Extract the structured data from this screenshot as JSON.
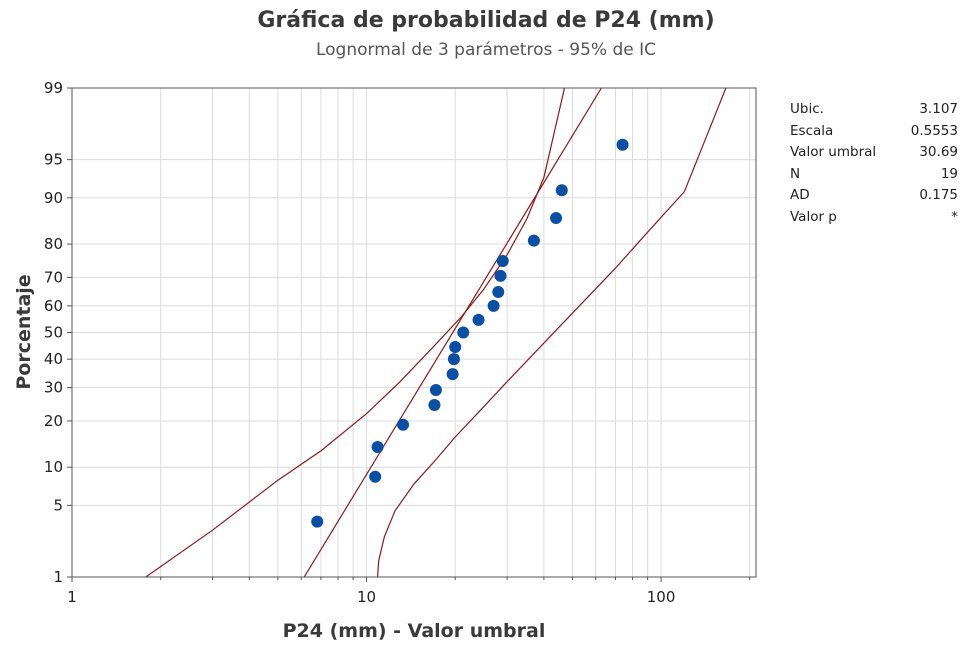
{
  "chart_data": {
    "type": "scatter",
    "title": "Gráfica de probabilidad de P24 (mm)",
    "subtitle": "Lognormal de 3 parámetros - 95% de IC",
    "xlabel": "P24 (mm) - Valor umbral",
    "ylabel": "Porcentaje",
    "x_scale": "log",
    "y_scale": "lognormal-probability",
    "xlim": [
      1,
      210
    ],
    "ylim": [
      1,
      99
    ],
    "x_ticks": [
      1,
      10,
      100
    ],
    "x_tick_labels": [
      "1",
      "10",
      "100"
    ],
    "y_ticks": [
      1,
      5,
      10,
      20,
      30,
      40,
      50,
      60,
      70,
      80,
      90,
      95,
      99
    ],
    "y_tick_labels": [
      "1",
      "5",
      "10",
      "20",
      "30",
      "40",
      "50",
      "60",
      "70",
      "80",
      "90",
      "95",
      "99"
    ],
    "grid": true,
    "points": [
      {
        "x": 6.8,
        "y": 3.6
      },
      {
        "x": 10.7,
        "y": 8.5
      },
      {
        "x": 10.9,
        "y": 13.8
      },
      {
        "x": 13.3,
        "y": 19.0
      },
      {
        "x": 17.0,
        "y": 24.5
      },
      {
        "x": 17.2,
        "y": 29.2
      },
      {
        "x": 19.6,
        "y": 34.6
      },
      {
        "x": 19.8,
        "y": 40.0
      },
      {
        "x": 20.0,
        "y": 44.5
      },
      {
        "x": 21.3,
        "y": 50.0
      },
      {
        "x": 24.0,
        "y": 54.8
      },
      {
        "x": 27.0,
        "y": 60.0
      },
      {
        "x": 28.0,
        "y": 65.0
      },
      {
        "x": 28.5,
        "y": 70.5
      },
      {
        "x": 29.0,
        "y": 75.2
      },
      {
        "x": 37.0,
        "y": 80.9
      },
      {
        "x": 44.0,
        "y": 86.2
      },
      {
        "x": 46.0,
        "y": 91.2
      },
      {
        "x": 74.0,
        "y": 96.3
      }
    ],
    "fit_line": {
      "x": [
        6.14,
        62.7
      ],
      "y": [
        1,
        99
      ]
    },
    "ci_lower": {
      "x": [
        1.78,
        3.0,
        5.0,
        8.0,
        10.5,
        13.0,
        17.0,
        21.0,
        27.0,
        35.0,
        45.0,
        60.0,
        80.0,
        120.0,
        180.0
      ],
      "y": [
        1.0,
        1.7,
        3.0,
        6.0,
        10.0,
        15.0,
        23.0,
        32.0,
        45.0,
        58.0,
        70.0,
        82.0,
        90.0,
        96.0,
        98.5
      ]
    },
    "ci_upper": {
      "x": [
        10.9,
        11.0,
        11.5,
        12.5,
        14.5,
        17.0,
        20.0,
        25.0,
        30.0,
        40.0,
        55.0,
        70.0,
        90.0,
        120.0,
        166.0
      ],
      "y": [
        1.0,
        1.5,
        2.6,
        4.5,
        7.5,
        11.0,
        16.0,
        24.0,
        32.0,
        46.0,
        62.0,
        73.0,
        83.0,
        91.0,
        99.0
      ]
    },
    "ci_upper_left": {
      "x": [
        1.78,
        3.0,
        5.0,
        7.0,
        10.0,
        13.0,
        17.0,
        21.0,
        25.0,
        30.0,
        35.0,
        40.0,
        47.0
      ],
      "y": [
        1.0,
        3.0,
        8.0,
        13.0,
        22.0,
        32.0,
        45.0,
        56.0,
        66.0,
        77.0,
        86.0,
        93.0,
        99.0
      ]
    },
    "stats": [
      {
        "label": "Ubic.",
        "value": "3.107"
      },
      {
        "label": "Escala",
        "value": "0.5553"
      },
      {
        "label": "Valor umbral",
        "value": "30.69"
      },
      {
        "label": "N",
        "value": "19"
      },
      {
        "label": "AD",
        "value": "0.175"
      },
      {
        "label": "Valor p",
        "value": "*"
      }
    ],
    "colors": {
      "points": "#0b4ea2",
      "fit_line": "#8b1a1a",
      "ci_lines": "#8b1a1a",
      "grid": "#dcdcdc",
      "frame": "#555555"
    }
  }
}
